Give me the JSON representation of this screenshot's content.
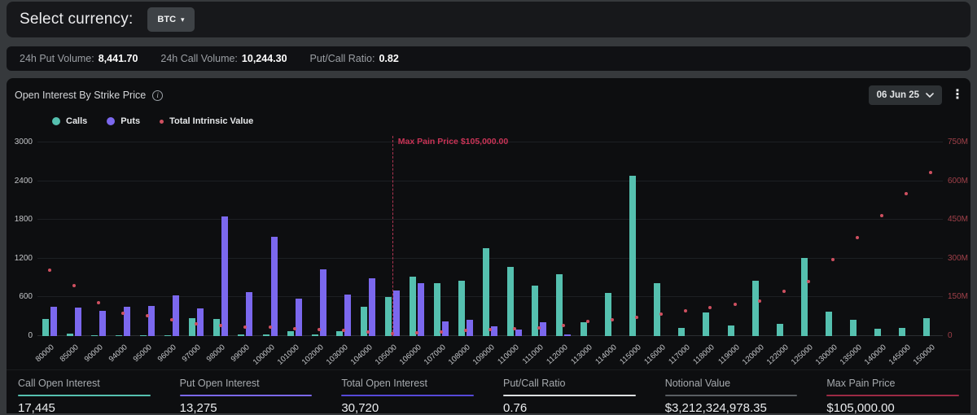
{
  "currency_bar": {
    "label": "Select currency:",
    "selected": "BTC"
  },
  "icons": {
    "dropdown_caret": "▾",
    "kebab": "⋮",
    "info": "i"
  },
  "stats_bar": {
    "items": [
      {
        "label": "24h Put Volume:",
        "value": "8,441.70"
      },
      {
        "label": "24h Call Volume:",
        "value": "10,244.30"
      },
      {
        "label": "Put/Call Ratio:",
        "value": "0.82"
      }
    ]
  },
  "chart_panel": {
    "title": "Open Interest By Strike Price",
    "date_selector": "06 Jun 25",
    "legend": [
      {
        "label": "Calls",
        "color": "#55c0af",
        "shape": "circle"
      },
      {
        "label": "Puts",
        "color": "#7b68ee",
        "shape": "circle"
      },
      {
        "label": "Total Intrinsic Value",
        "color": "#cf5060",
        "shape": "dot"
      }
    ]
  },
  "chart_data": {
    "type": "bar",
    "title": "Open Interest By Strike Price",
    "categories": [
      "80000",
      "85000",
      "90000",
      "94000",
      "95000",
      "96000",
      "97000",
      "98000",
      "99000",
      "100000",
      "101000",
      "102000",
      "103000",
      "104000",
      "105000",
      "106000",
      "107000",
      "108000",
      "109000",
      "110000",
      "111000",
      "112000",
      "113000",
      "114000",
      "115000",
      "116000",
      "117000",
      "118000",
      "119000",
      "120000",
      "122000",
      "125000",
      "130000",
      "135000",
      "140000",
      "145000",
      "150000"
    ],
    "series": [
      {
        "name": "Calls",
        "type": "bar",
        "axis": "left",
        "color": "#55c0af",
        "values": [
          270,
          40,
          15,
          10,
          10,
          15,
          280,
          270,
          30,
          20,
          70,
          25,
          80,
          450,
          610,
          920,
          825,
          860,
          1360,
          1070,
          780,
          960,
          210,
          670,
          2480,
          820,
          130,
          360,
          160,
          860,
          190,
          1210,
          380,
          250,
          110,
          130,
          280
        ]
      },
      {
        "name": "Puts",
        "type": "bar",
        "axis": "left",
        "color": "#7b68ee",
        "values": [
          455,
          440,
          390,
          460,
          470,
          630,
          425,
          1850,
          680,
          1540,
          580,
          1040,
          640,
          890,
          700,
          815,
          230,
          250,
          150,
          100,
          210,
          30,
          0,
          0,
          0,
          0,
          0,
          0,
          0,
          0,
          0,
          0,
          0,
          0,
          0,
          0,
          0
        ]
      },
      {
        "name": "Total Intrinsic Value",
        "type": "scatter",
        "axis": "right",
        "color": "#cf5060",
        "values_millions": [
          255,
          195,
          130,
          88,
          79,
          63,
          47,
          41,
          36,
          34,
          28,
          25,
          22,
          16,
          10,
          13,
          17,
          21,
          24,
          27,
          33,
          41,
          57,
          62,
          72,
          86,
          97,
          111,
          122,
          135,
          174,
          211,
          296,
          380,
          466,
          552,
          634
        ]
      }
    ],
    "left_axis": {
      "min": 0,
      "max": 3000,
      "ticks": [
        0,
        600,
        1200,
        1800,
        2400,
        3000
      ]
    },
    "right_axis": {
      "labels": [
        "0",
        "150M",
        "300M",
        "450M",
        "600M",
        "750M"
      ],
      "max_millions": 750,
      "color": "#a04049"
    },
    "x_axis_rotation_deg": -42,
    "grid": true,
    "legend_position": "top-left",
    "annotation": {
      "label": "Max Pain Price $105,000.00",
      "category": "105000",
      "color": "#c93356"
    }
  },
  "summary_stats": {
    "items": [
      {
        "label": "Call Open Interest",
        "value": "17,445",
        "underline_color": "#55c0af"
      },
      {
        "label": "Put Open Interest",
        "value": "13,275",
        "underline_color": "#7b68ee"
      },
      {
        "label": "Total Open Interest",
        "value": "30,720",
        "underline_color": "#5649d8"
      },
      {
        "label": "Put/Call Ratio",
        "value": "0.76",
        "underline_color": "#dde0e2"
      },
      {
        "label": "Notional Value",
        "value": "$3,212,324,978.35",
        "underline_color": "#5a5e62"
      },
      {
        "label": "Max Pain Price",
        "value": "$105,000.00",
        "underline_color": "#9c2a44"
      }
    ]
  }
}
